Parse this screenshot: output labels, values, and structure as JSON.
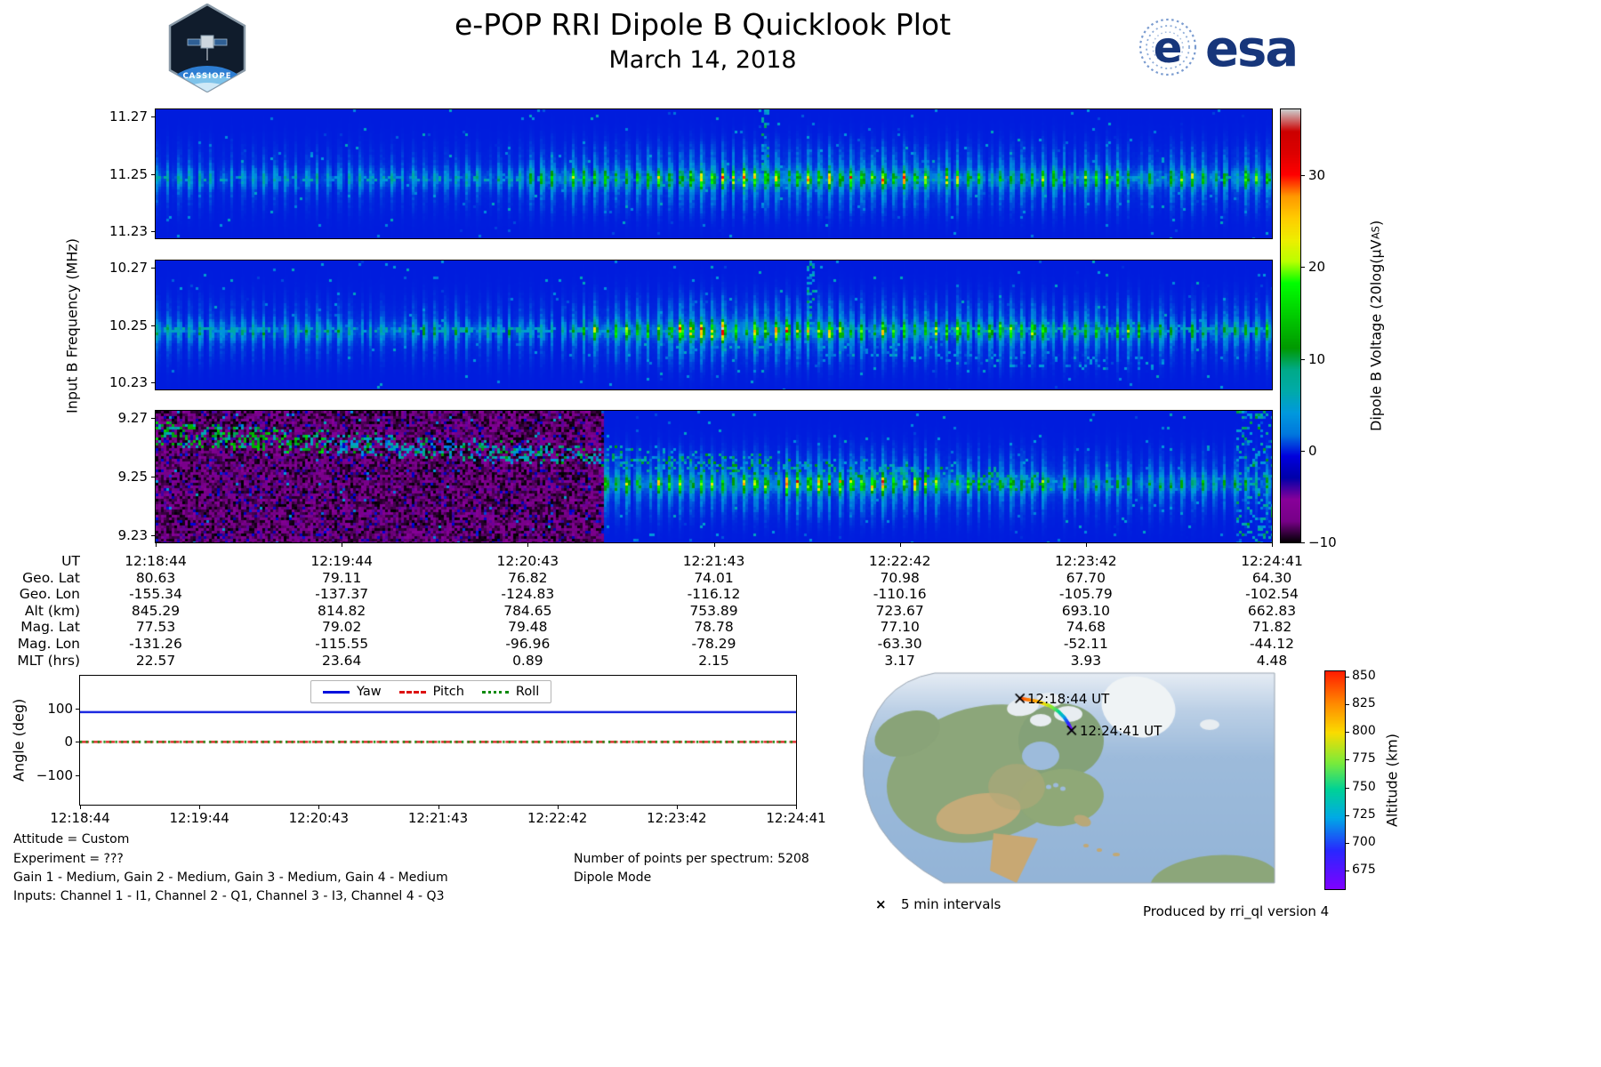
{
  "header": {
    "title": "e-POP RRI Dipole B Quicklook Plot",
    "date": "March 14, 2018",
    "mission_logo_text": "CASSIOPE",
    "esa_logo_text": "esa"
  },
  "spectrogram_section": {
    "ylabel": "Input B Frequency (MHz)",
    "colorbar": {
      "label_main": "Dipole B Voltage (20log(μV",
      "label_sub": "AS",
      "label_close": ")",
      "ticks": [
        30,
        20,
        10,
        0,
        -10
      ],
      "vmin": -10,
      "vmax": 37.2
    },
    "panels": [
      {
        "name": "band-11.25-MHz",
        "yticks": [
          "11.27",
          "11.25",
          "11.23"
        ]
      },
      {
        "name": "band-10.25-MHz",
        "yticks": [
          "10.27",
          "10.25",
          "10.23"
        ]
      },
      {
        "name": "band-9.25-MHz",
        "yticks": [
          "9.27",
          "9.25",
          "9.23"
        ]
      }
    ]
  },
  "ephemeris": {
    "row_labels": [
      "UT",
      "Geo. Lat",
      "Geo. Lon",
      "Alt (km)",
      "Mag. Lat",
      "Mag. Lon",
      "MLT (hrs)"
    ],
    "columns": [
      [
        "12:18:44",
        "80.63",
        "-155.34",
        "845.29",
        "77.53",
        "-131.26",
        "22.57"
      ],
      [
        "12:19:44",
        "79.11",
        "-137.37",
        "814.82",
        "79.02",
        "-115.55",
        "23.64"
      ],
      [
        "12:20:43",
        "76.82",
        "-124.83",
        "784.65",
        "79.48",
        "-96.96",
        "0.89"
      ],
      [
        "12:21:43",
        "74.01",
        "-116.12",
        "753.89",
        "78.78",
        "-78.29",
        "2.15"
      ],
      [
        "12:22:42",
        "70.98",
        "-110.16",
        "723.67",
        "77.10",
        "-63.30",
        "3.17"
      ],
      [
        "12:23:42",
        "67.70",
        "-105.79",
        "693.10",
        "74.68",
        "-52.11",
        "3.93"
      ],
      [
        "12:24:41",
        "64.30",
        "-102.54",
        "662.83",
        "71.82",
        "-44.12",
        "4.48"
      ]
    ]
  },
  "angle_plot": {
    "ylabel": "Angle (deg)",
    "yticks": [
      100,
      0,
      -100
    ],
    "ylim": [
      -190,
      200
    ],
    "xticks": [
      "12:18:44",
      "12:19:44",
      "12:20:43",
      "12:21:43",
      "12:22:42",
      "12:23:42",
      "12:24:41"
    ],
    "legend": [
      {
        "label": "Yaw",
        "color": "#0010dd",
        "style": "solid"
      },
      {
        "label": "Pitch",
        "color": "#dd1111",
        "style": "dashed"
      },
      {
        "label": "Roll",
        "color": "#0a8a0a",
        "style": "dotted"
      }
    ]
  },
  "map": {
    "start_label": "12:18:44 UT",
    "end_label": "12:24:41 UT",
    "marker_symbol": "×",
    "marker_legend": "5 min intervals",
    "colorbar": {
      "label": "Altitude (km)",
      "ticks": [
        850,
        825,
        800,
        775,
        750,
        725,
        700,
        675
      ],
      "vmin": 658,
      "vmax": 855
    }
  },
  "footer": {
    "attitude": "Attitude = Custom",
    "experiment": "Experiment = ???",
    "gains": "Gain 1 - Medium, Gain 2 - Medium, Gain 3 - Medium, Gain 4 - Medium",
    "inputs": "Inputs: Channel 1 - I1, Channel 2 - Q1, Channel 3 - I3, Channel 4 - Q3",
    "points_per_spectrum": "Number of points per spectrum: 5208",
    "mode": "Dipole Mode",
    "produced_by": "Produced by rri_ql version 4"
  },
  "chart_data": [
    {
      "id": "spec1125",
      "type": "heatmap",
      "title": "RRI Dipole B spectrogram, 11.25 MHz channel",
      "xlabel": "UT",
      "x_start": "12:18:44",
      "x_end": "12:24:41",
      "ylabel": "Input B Frequency (MHz)",
      "ylim": [
        11.23,
        11.27
      ],
      "yticks": [
        11.27,
        11.25,
        11.23
      ],
      "zlabel": "Dipole B Voltage (20log(μV_AS))",
      "zlim": [
        -10,
        37.2
      ],
      "colormap": "nipy_spectral",
      "description": "Noise floor near -10 to -4; pulsed narrowband emission at ~11.249 MHz starting ~12:20:30, peak 15-26 between 12:21 and 12:22, weaker pulse striping continuing to 12:24:41",
      "render": {
        "band_row_frac": 0.52,
        "hline": 0.35,
        "segments": [
          [
            0.0,
            0.33,
            7
          ],
          [
            0.33,
            0.47,
            17
          ],
          [
            0.47,
            0.72,
            24
          ],
          [
            0.72,
            0.9,
            17
          ],
          [
            0.9,
            1.0,
            19
          ]
        ],
        "vlines": [
          0.545
        ],
        "seed": 11
      }
    },
    {
      "id": "spec1025",
      "type": "heatmap",
      "title": "RRI Dipole B spectrogram, 10.25 MHz channel",
      "xlabel": "UT",
      "x_start": "12:18:44",
      "x_end": "12:24:41",
      "ylabel": "Input B Frequency (MHz)",
      "ylim": [
        10.23,
        10.27
      ],
      "yticks": [
        10.27,
        10.25,
        10.23
      ],
      "zlabel": "Dipole B Voltage (20log(μV_AS))",
      "zlim": [
        -10,
        37.2
      ],
      "colormap": "nipy_spectral",
      "description": "Continuous weak line at 10.249 MHz across the pass; strong pulsed emission 12:20:45-12:23, brightest spot ~33 near 12:21:30, diffuse weak scatter below band to the right",
      "render": {
        "band_row_frac": 0.53,
        "hline": 0.75,
        "segments": [
          [
            0.0,
            0.38,
            9
          ],
          [
            0.38,
            0.46,
            18
          ],
          [
            0.46,
            0.5,
            26
          ],
          [
            0.5,
            0.535,
            33
          ],
          [
            0.535,
            0.62,
            26
          ],
          [
            0.62,
            0.8,
            20
          ],
          [
            0.8,
            1.0,
            15
          ]
        ],
        "vlines": [
          0.585
        ],
        "traceWeak": [
          0.45,
          0.9,
          0.6,
          0.8
        ],
        "seed": 22
      }
    },
    {
      "id": "spec0925",
      "type": "heatmap",
      "title": "RRI Dipole B spectrogram, 9.25 MHz channel",
      "xlabel": "UT",
      "x_start": "12:18:44",
      "x_end": "12:24:41",
      "ylabel": "Input B Frequency (MHz)",
      "ylim": [
        9.23,
        9.27
      ],
      "yticks": [
        9.27,
        9.25,
        9.23
      ],
      "zlabel": "Dipole B Voltage (20log(μV_AS))",
      "zlim": [
        -10,
        37.2
      ],
      "colormap": "nipy_spectral",
      "description": "Descending diffuse trace from ~9.264 MHz at 12:18:44 down to ~9.25 MHz by ~12:22:30; pulsed band at 9.248 MHz strongest 12:21-12:22; broadband noise column at right edge",
      "render": {
        "band_row_frac": 0.54,
        "hline": 0,
        "segments": [
          [
            0.4,
            0.52,
            18
          ],
          [
            0.52,
            0.7,
            26
          ],
          [
            0.7,
            0.82,
            18
          ],
          [
            0.82,
            1.0,
            12
          ]
        ],
        "trace": [
          0.0,
          0.8,
          0.16,
          0.52
        ],
        "edge": 0.965,
        "seed": 33
      }
    },
    {
      "id": "attitude",
      "type": "line",
      "title": "Spacecraft attitude angles",
      "x": [
        "12:18:44",
        "12:19:44",
        "12:20:43",
        "12:21:43",
        "12:22:42",
        "12:23:42",
        "12:24:41"
      ],
      "series": [
        {
          "name": "Yaw",
          "values": [
            90,
            90,
            90,
            90,
            90,
            90,
            90
          ]
        },
        {
          "name": "Pitch",
          "values": [
            0,
            0,
            0,
            0,
            0,
            0,
            0
          ]
        },
        {
          "name": "Roll",
          "values": [
            0,
            0,
            0,
            0,
            0,
            0,
            0
          ]
        }
      ],
      "ylabel": "Angle (deg)",
      "ylim": [
        -190,
        200
      ],
      "yticks": [
        100,
        0,
        -100
      ],
      "legend_position": "upper center",
      "grid": false
    },
    {
      "id": "ephemeris_table",
      "type": "table",
      "title": "Ephemeris",
      "row_labels": [
        "UT",
        "Geo. Lat",
        "Geo. Lon",
        "Alt (km)",
        "Mag. Lat",
        "Mag. Lon",
        "MLT (hrs)"
      ],
      "columns": [
        [
          "12:18:44",
          80.63,
          -155.34,
          845.29,
          77.53,
          -131.26,
          22.57
        ],
        [
          "12:19:44",
          79.11,
          -137.37,
          814.82,
          79.02,
          -115.55,
          23.64
        ],
        [
          "12:20:43",
          76.82,
          -124.83,
          784.65,
          79.48,
          -96.96,
          0.89
        ],
        [
          "12:21:43",
          74.01,
          -116.12,
          753.89,
          78.78,
          -78.29,
          2.15
        ],
        [
          "12:22:42",
          70.98,
          -110.16,
          723.67,
          77.1,
          -63.3,
          3.17
        ],
        [
          "12:23:42",
          67.7,
          -105.79,
          693.1,
          74.68,
          -52.11,
          3.93
        ],
        [
          "12:24:41",
          64.3,
          -102.54,
          662.83,
          71.82,
          -44.12,
          4.48
        ]
      ]
    },
    {
      "id": "ground_track",
      "type": "scatter",
      "title": "CASSIOPE ground track over North America",
      "color_by": "Altitude (km)",
      "colormap": "rainbow",
      "colorbar_ticks": [
        850,
        825,
        800,
        775,
        750,
        725,
        700,
        675
      ],
      "marker": "x",
      "marker_note": "5 min intervals",
      "labels": {
        "start": "12:18:44 UT",
        "end": "12:24:41 UT"
      },
      "points": [
        {
          "ut": "12:18:44",
          "lat": 80.63,
          "lon": -155.34,
          "alt_km": 845.29
        },
        {
          "ut": "12:19:44",
          "lat": 79.11,
          "lon": -137.37,
          "alt_km": 814.82
        },
        {
          "ut": "12:20:43",
          "lat": 76.82,
          "lon": -124.83,
          "alt_km": 784.65
        },
        {
          "ut": "12:21:43",
          "lat": 74.01,
          "lon": -116.12,
          "alt_km": 753.89
        },
        {
          "ut": "12:22:42",
          "lat": 70.98,
          "lon": -110.16,
          "alt_km": 723.67
        },
        {
          "ut": "12:23:42",
          "lat": 67.7,
          "lon": -105.79,
          "alt_km": 693.1
        },
        {
          "ut": "12:24:41",
          "lat": 64.3,
          "lon": -102.54,
          "alt_km": 662.83
        }
      ]
    }
  ]
}
